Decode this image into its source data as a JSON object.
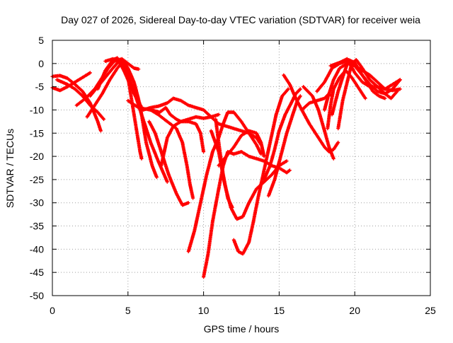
{
  "chart_data": {
    "type": "scatter",
    "title": "Day 027 of 2026, Sidereal Day-to-day VTEC variation (SDTVAR) for receiver weia",
    "xlabel": "GPS time / hours",
    "ylabel": "SDTVAR / TECUs",
    "xlim": [
      0,
      25
    ],
    "ylim": [
      -50,
      5
    ],
    "xticks": [
      "0",
      "5",
      "10",
      "15",
      "20",
      "25"
    ],
    "yticks": [
      "5",
      "0",
      "-5",
      "-10",
      "-15",
      "-20",
      "-25",
      "-30",
      "-35",
      "-40",
      "-45",
      "-50"
    ],
    "grid": true,
    "marker": "+",
    "marker_color": "#ff0000",
    "series": [
      {
        "points": [
          [
            0,
            -5.2
          ],
          [
            0.5,
            -5.8
          ],
          [
            1,
            -5
          ],
          [
            1.5,
            -4
          ],
          [
            2,
            -3
          ],
          [
            2.5,
            -2
          ]
        ]
      },
      {
        "points": [
          [
            0,
            -2.8
          ],
          [
            0.5,
            -2.6
          ],
          [
            1,
            -3.2
          ],
          [
            1.5,
            -4.5
          ],
          [
            2,
            -6
          ],
          [
            2.5,
            -8.5
          ],
          [
            3,
            -12.5
          ],
          [
            3.2,
            -14.5
          ]
        ]
      },
      {
        "points": [
          [
            0.3,
            -3.5
          ],
          [
            1,
            -4.5
          ],
          [
            1.5,
            -5.5
          ],
          [
            2,
            -7
          ],
          [
            2.5,
            -9
          ],
          [
            3,
            -10.5
          ],
          [
            3.4,
            -12
          ]
        ]
      },
      {
        "points": [
          [
            1.6,
            -9
          ],
          [
            2.2,
            -7.5
          ],
          [
            2.8,
            -5.5
          ],
          [
            3.3,
            -3
          ],
          [
            3.7,
            -1
          ],
          [
            4.1,
            0.5
          ],
          [
            4.6,
            1
          ],
          [
            5,
            0
          ],
          [
            5.4,
            -1
          ],
          [
            5.7,
            -1.2
          ]
        ]
      },
      {
        "points": [
          [
            2.3,
            -11.5
          ],
          [
            2.8,
            -9
          ],
          [
            3.3,
            -6.5
          ],
          [
            3.8,
            -3.5
          ],
          [
            4.3,
            -1
          ],
          [
            4.7,
            0.5
          ],
          [
            5,
            -1
          ],
          [
            5.4,
            -4
          ],
          [
            5.8,
            -9
          ],
          [
            6.2,
            -17
          ],
          [
            6.6,
            -22
          ],
          [
            6.9,
            -24.5
          ]
        ]
      },
      {
        "points": [
          [
            2.5,
            -7
          ],
          [
            3.5,
            -3
          ],
          [
            4,
            -1
          ],
          [
            4.5,
            0.8
          ],
          [
            5,
            -2
          ],
          [
            5.5,
            -7
          ],
          [
            6,
            -12
          ],
          [
            6.5,
            -17
          ],
          [
            7,
            -21
          ],
          [
            7.4,
            -24
          ],
          [
            7.6,
            -25.5
          ]
        ]
      },
      {
        "points": [
          [
            3.5,
            0.5
          ],
          [
            4,
            1
          ],
          [
            4.5,
            0.5
          ],
          [
            5,
            -3
          ],
          [
            5.3,
            -9
          ],
          [
            5.6,
            -15
          ],
          [
            5.8,
            -19
          ],
          [
            5.9,
            -20.5
          ]
        ]
      },
      {
        "points": [
          [
            3,
            -5.5
          ],
          [
            3.5,
            -1.5
          ],
          [
            4,
            0.8
          ],
          [
            4.3,
            1.2
          ],
          [
            4.8,
            -2
          ],
          [
            5.4,
            -6.5
          ],
          [
            6,
            -10
          ],
          [
            6.5,
            -9.5
          ],
          [
            7,
            -9.2
          ],
          [
            7.6,
            -8.5
          ],
          [
            8,
            -7.5
          ],
          [
            8.5,
            -8
          ],
          [
            9,
            -9
          ],
          [
            9.5,
            -9.5
          ],
          [
            10,
            -10
          ],
          [
            10.5,
            -11.5
          ],
          [
            11,
            -13
          ],
          [
            11.5,
            -13.5
          ],
          [
            12,
            -14
          ],
          [
            12.5,
            -14.5
          ],
          [
            13,
            -15
          ],
          [
            13.5,
            -17.5
          ],
          [
            13.8,
            -19.5
          ]
        ]
      },
      {
        "points": [
          [
            5,
            -8
          ],
          [
            5.7,
            -9.5
          ],
          [
            6.5,
            -10
          ],
          [
            7.1,
            -10.5
          ],
          [
            7.5,
            -9.5
          ],
          [
            7.8,
            -11
          ],
          [
            8.2,
            -12
          ],
          [
            8.5,
            -12.5
          ],
          [
            9,
            -12.5
          ],
          [
            9.5,
            -13
          ],
          [
            9.8,
            -15
          ],
          [
            10,
            -19
          ]
        ]
      },
      {
        "points": [
          [
            6.5,
            -10
          ],
          [
            7,
            -11
          ],
          [
            7.6,
            -12.5
          ],
          [
            8.2,
            -14
          ],
          [
            8.6,
            -17
          ],
          [
            8.9,
            -22
          ],
          [
            9.1,
            -26
          ],
          [
            9.3,
            -29
          ]
        ]
      },
      {
        "points": [
          [
            6.4,
            -12.5
          ],
          [
            6.8,
            -15
          ],
          [
            7.2,
            -19
          ],
          [
            7.7,
            -24
          ],
          [
            8.2,
            -28
          ],
          [
            8.6,
            -30.5
          ],
          [
            9,
            -30
          ]
        ]
      },
      {
        "points": [
          [
            7.2,
            -22
          ],
          [
            7.6,
            -16
          ],
          [
            8,
            -13.5
          ],
          [
            8.5,
            -12.5
          ],
          [
            9,
            -12
          ],
          [
            9.5,
            -11.5
          ],
          [
            10,
            -11.8
          ],
          [
            10.5,
            -11.5
          ],
          [
            11,
            -11
          ]
        ]
      },
      {
        "points": [
          [
            9,
            -40.5
          ],
          [
            9.4,
            -36
          ],
          [
            9.8,
            -30
          ],
          [
            10.2,
            -24
          ],
          [
            10.6,
            -19
          ],
          [
            11,
            -16
          ],
          [
            11.3,
            -13
          ],
          [
            11.6,
            -10.5
          ],
          [
            12,
            -10.5
          ],
          [
            12.5,
            -12.5
          ],
          [
            13,
            -15
          ],
          [
            13.5,
            -16
          ],
          [
            13.8,
            -17.5
          ]
        ]
      },
      {
        "points": [
          [
            10,
            -46
          ],
          [
            10.3,
            -41
          ],
          [
            10.6,
            -34
          ],
          [
            11,
            -27
          ],
          [
            11.3,
            -22
          ],
          [
            11.6,
            -19
          ],
          [
            12,
            -19.5
          ],
          [
            12.5,
            -19
          ],
          [
            13,
            -20
          ],
          [
            13.5,
            -20.5
          ],
          [
            14,
            -21
          ],
          [
            14.5,
            -22
          ],
          [
            15,
            -22.5
          ],
          [
            15.5,
            -23.5
          ],
          [
            15.7,
            -23
          ]
        ]
      },
      {
        "points": [
          [
            10.8,
            -12
          ],
          [
            11,
            -17
          ],
          [
            11.3,
            -24
          ],
          [
            11.6,
            -29
          ],
          [
            11.9,
            -31
          ]
        ]
      },
      {
        "points": [
          [
            10.5,
            -14.5
          ],
          [
            11,
            -19
          ],
          [
            11.4,
            -26
          ],
          [
            11.8,
            -31
          ],
          [
            12.2,
            -33.5
          ],
          [
            12.6,
            -33
          ],
          [
            13,
            -30
          ],
          [
            13.5,
            -27
          ],
          [
            14,
            -25.5
          ],
          [
            14.5,
            -24
          ],
          [
            15,
            -22
          ],
          [
            15.5,
            -21
          ]
        ]
      },
      {
        "points": [
          [
            12,
            -38
          ],
          [
            12.3,
            -40.5
          ],
          [
            12.6,
            -41
          ],
          [
            13,
            -38.5
          ],
          [
            13.3,
            -34
          ],
          [
            13.6,
            -29
          ],
          [
            14,
            -23
          ],
          [
            14.4,
            -17
          ],
          [
            14.8,
            -11
          ],
          [
            15.2,
            -7
          ],
          [
            15.6,
            -5.5
          ]
        ]
      },
      {
        "points": [
          [
            11,
            -22
          ],
          [
            11.5,
            -20
          ],
          [
            12,
            -18
          ],
          [
            12.5,
            -15.5
          ],
          [
            13,
            -14.5
          ],
          [
            13.5,
            -15
          ],
          [
            13.8,
            -17
          ],
          [
            14,
            -20
          ]
        ]
      },
      {
        "points": [
          [
            14,
            -25
          ],
          [
            14.4,
            -22
          ],
          [
            14.7,
            -18.5
          ],
          [
            15,
            -14.5
          ],
          [
            15.4,
            -11
          ],
          [
            15.8,
            -8.5
          ],
          [
            16.1,
            -6.5
          ],
          [
            16.4,
            -5.5
          ]
        ]
      },
      {
        "points": [
          [
            14.3,
            -28.5
          ],
          [
            14.7,
            -25
          ],
          [
            15.1,
            -20
          ],
          [
            15.5,
            -15
          ],
          [
            15.9,
            -11
          ],
          [
            16.2,
            -8
          ],
          [
            16.4,
            -7
          ]
        ]
      },
      {
        "points": [
          [
            15.3,
            -2.5
          ],
          [
            15.7,
            -4.5
          ],
          [
            16.1,
            -7.5
          ],
          [
            16.5,
            -10
          ],
          [
            17,
            -13
          ],
          [
            17.5,
            -15.5
          ],
          [
            18,
            -18
          ],
          [
            18.3,
            -19
          ],
          [
            18.6,
            -18.5
          ],
          [
            18.9,
            -17
          ]
        ]
      },
      {
        "points": [
          [
            16.5,
            -10
          ],
          [
            17,
            -8.5
          ],
          [
            17.5,
            -8
          ],
          [
            18,
            -7.5
          ],
          [
            18.3,
            -6.5
          ],
          [
            18.5,
            -7
          ]
        ]
      },
      {
        "points": [
          [
            16.6,
            -5
          ],
          [
            17.2,
            -7
          ],
          [
            17.6,
            -10
          ],
          [
            18,
            -14.5
          ],
          [
            18.3,
            -18
          ],
          [
            18.6,
            -20.5
          ]
        ]
      },
      {
        "points": [
          [
            18,
            -10
          ],
          [
            18.2,
            -7.5
          ],
          [
            18.6,
            -3.5
          ],
          [
            19,
            -1
          ],
          [
            19.5,
            0
          ],
          [
            20,
            -0.5
          ],
          [
            20.5,
            -1.5
          ],
          [
            21,
            -2.5
          ],
          [
            21.5,
            -4
          ],
          [
            22,
            -5.5
          ],
          [
            22.5,
            -5.8
          ],
          [
            23,
            -5.5
          ]
        ]
      },
      {
        "points": [
          [
            18.5,
            -11
          ],
          [
            18.9,
            -6
          ],
          [
            19.3,
            -2
          ],
          [
            19.6,
            0.8
          ],
          [
            20,
            0.2
          ],
          [
            20.4,
            -2
          ],
          [
            20.8,
            -4
          ],
          [
            21.2,
            -6
          ],
          [
            21.6,
            -7
          ],
          [
            22,
            -7.5
          ]
        ]
      },
      {
        "points": [
          [
            18.9,
            -14
          ],
          [
            19.2,
            -8
          ],
          [
            19.5,
            -4
          ],
          [
            19.8,
            0
          ],
          [
            20.1,
            0.8
          ],
          [
            20.5,
            -1
          ],
          [
            21,
            -3.5
          ],
          [
            21.5,
            -5
          ],
          [
            22,
            -6.5
          ],
          [
            22.4,
            -7.5
          ],
          [
            22.8,
            -6
          ]
        ]
      },
      {
        "points": [
          [
            18.2,
            -14
          ],
          [
            18.4,
            -9
          ],
          [
            18.6,
            -5.5
          ],
          [
            19,
            -3
          ],
          [
            19.4,
            -1.5
          ],
          [
            19.8,
            -3
          ],
          [
            20.3,
            -5.5
          ],
          [
            20.7,
            -7.5
          ]
        ]
      },
      {
        "points": [
          [
            17.5,
            -6
          ],
          [
            18,
            -4
          ],
          [
            18.5,
            -1
          ],
          [
            19,
            0
          ],
          [
            19.5,
            0.5
          ],
          [
            20,
            -0.5
          ],
          [
            20.5,
            -2.5
          ],
          [
            21,
            -4.5
          ],
          [
            21.5,
            -6
          ],
          [
            22,
            -6.5
          ],
          [
            22.5,
            -5.5
          ],
          [
            23,
            -3.5
          ]
        ]
      },
      {
        "points": [
          [
            18.4,
            -0.5
          ],
          [
            19,
            0.2
          ],
          [
            19.5,
            1
          ],
          [
            20,
            -2
          ],
          [
            20.5,
            -4
          ],
          [
            21,
            -5
          ],
          [
            21.5,
            -5
          ],
          [
            22,
            -5.5
          ],
          [
            22.5,
            -4.5
          ],
          [
            23,
            -3.5
          ]
        ]
      }
    ]
  }
}
